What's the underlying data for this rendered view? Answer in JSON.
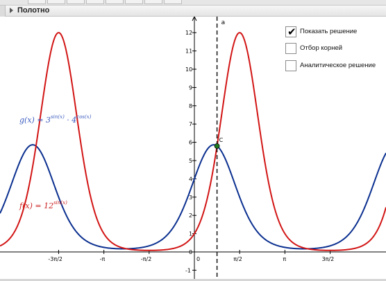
{
  "panel": {
    "title": "Полотно"
  },
  "checkboxes": [
    {
      "label": "Показать решение",
      "checked": true
    },
    {
      "label": "Отбор корней",
      "checked": false
    },
    {
      "label": "Аналитическое решение",
      "checked": false
    }
  ],
  "formulas": {
    "g": {
      "lhs": "g(x)",
      "equals": "=",
      "base1": "3",
      "exp1": "sin(x)",
      "dot": "·",
      "base2": "4",
      "exp2": "cos(x)",
      "color": "#3a5bbf"
    },
    "f": {
      "lhs": "f(x)",
      "equals": "=",
      "base": "12",
      "exp": "sin(x)",
      "color": "#cc2222"
    }
  },
  "point": {
    "label": "C"
  },
  "line": {
    "label": "a"
  },
  "axes": {
    "x_tick_labels": [
      "-3π/2",
      "-π",
      "-π/2",
      "0",
      "π/2",
      "π",
      "3π/2"
    ],
    "y_tick_labels": [
      "-1",
      "0",
      "1",
      "2",
      "3",
      "4",
      "5",
      "6",
      "7",
      "8",
      "9",
      "10",
      "11",
      "12"
    ]
  },
  "colors": {
    "f_curve": "#d21414",
    "g_curve": "#0a2f8f",
    "point": "#1e7a1e",
    "axis": "#000000"
  }
}
